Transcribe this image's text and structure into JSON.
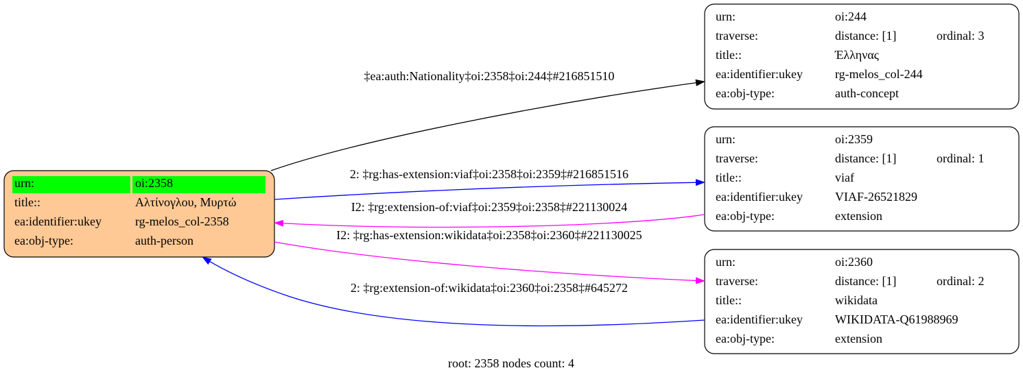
{
  "nodes": [
    {
      "rows": [
        [
          "urn:",
          "oi:2358"
        ],
        [
          "title::",
          "Αλτίνογλου, Μυρτώ"
        ],
        [
          "ea:identifier:ukey",
          "rg-melos_col-2358"
        ],
        [
          "ea:obj-type:",
          "auth-person"
        ]
      ]
    },
    {
      "rows": [
        [
          "urn:",
          "oi:244"
        ],
        [
          "traverse:",
          "distance: [1]",
          "ordinal: 3"
        ],
        [
          "title::",
          "Έλληνας"
        ],
        [
          "ea:identifier:ukey",
          "rg-melos_col-244"
        ],
        [
          "ea:obj-type:",
          "auth-concept"
        ]
      ]
    },
    {
      "rows": [
        [
          "urn:",
          "oi:2359"
        ],
        [
          "traverse:",
          "distance: [1]",
          "ordinal: 1"
        ],
        [
          "title::",
          "viaf"
        ],
        [
          "ea:identifier:ukey",
          "VIAF-26521829"
        ],
        [
          "ea:obj-type:",
          "extension"
        ]
      ]
    },
    {
      "rows": [
        [
          "urn:",
          "oi:2360"
        ],
        [
          "traverse:",
          "distance: [1]",
          "ordinal: 2"
        ],
        [
          "title::",
          "wikidata"
        ],
        [
          "ea:identifier:ukey",
          "WIKIDATA-Q61988969"
        ],
        [
          "ea:obj-type:",
          "extension"
        ]
      ]
    }
  ],
  "edges": [
    {
      "label": "‡ea:auth:Nationality‡oi:2358‡oi:244‡#216851510"
    },
    {
      "label": "2: ‡rg:has-extension:viaf‡oi:2358‡oi:2359‡#216851516"
    },
    {
      "label": "I2: ‡rg:extension-of:viaf‡oi:2359‡oi:2358‡#221130024"
    },
    {
      "label": "I2: ‡rg:has-extension:wikidata‡oi:2358‡oi:2360‡#221130025"
    },
    {
      "label": "2: ‡rg:extension-of:wikidata‡oi:2360‡oi:2358‡#645272"
    }
  ],
  "footer": "root: 2358 nodes count: 4"
}
